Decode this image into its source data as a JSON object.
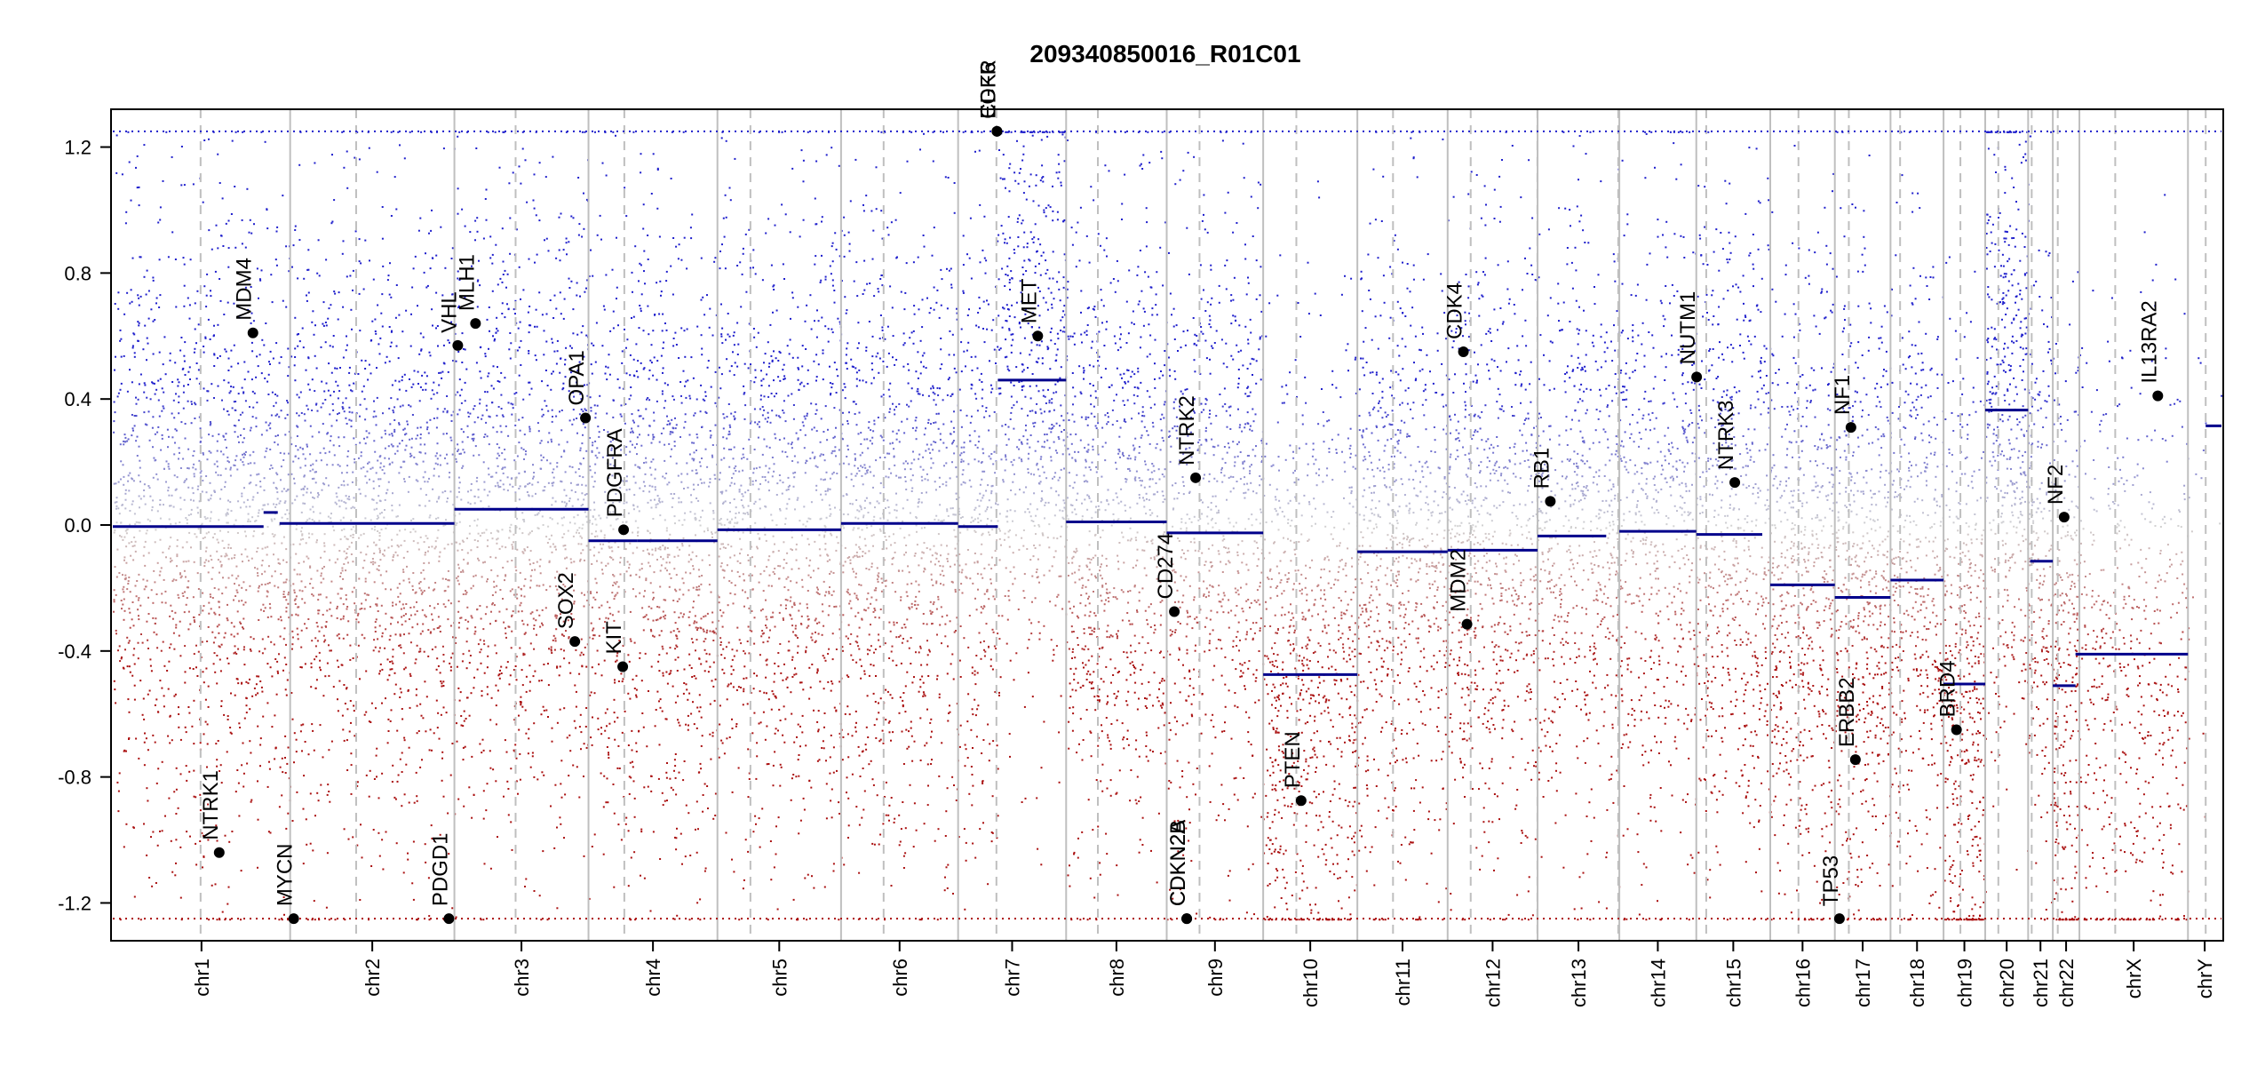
{
  "chart_data": {
    "type": "scatter",
    "title": "209340850016_R01C01",
    "ylim": [
      -1.32,
      1.32
    ],
    "y_ticks": [
      -1.2,
      -0.8,
      -0.4,
      0.0,
      0.4,
      0.8,
      1.2
    ],
    "y_tick_labels": [
      "-1.2",
      "-0.8",
      "-0.4",
      "0.0",
      "0.4",
      "0.8",
      "1.2"
    ],
    "cap": 1.25,
    "colors": {
      "gain": "#1f1fcc",
      "loss": "#aa1010",
      "neutral": "#bdbdbd",
      "segment": "#00008b",
      "boundary": "#bfbfbf"
    },
    "chromosomes": [
      {
        "name": "chr1",
        "start": 0,
        "end": 1000,
        "centromere": 495,
        "density": 1.0
      },
      {
        "name": "chr2",
        "start": 1000,
        "end": 1926,
        "centromere": 1372,
        "density": 1.0
      },
      {
        "name": "chr3",
        "start": 1926,
        "end": 2682,
        "centromere": 2271,
        "density": 1.0
      },
      {
        "name": "chr4",
        "start": 2682,
        "end": 3409,
        "centromere": 2884,
        "density": 1.0
      },
      {
        "name": "chr5",
        "start": 3409,
        "end": 4106,
        "centromere": 3595,
        "density": 1.0
      },
      {
        "name": "chr6",
        "start": 4106,
        "end": 4766,
        "centromere": 4346,
        "density": 1.0
      },
      {
        "name": "chr7",
        "start": 4766,
        "end": 5375,
        "centromere": 4982,
        "density": 1.0
      },
      {
        "name": "chr8",
        "start": 5375,
        "end": 5942,
        "centromere": 5554,
        "density": 1.0
      },
      {
        "name": "chr9",
        "start": 5942,
        "end": 6486,
        "centromere": 6127,
        "density": 0.9
      },
      {
        "name": "chr10",
        "start": 6486,
        "end": 7017,
        "centromere": 6673,
        "density": 1.0
      },
      {
        "name": "chr11",
        "start": 7017,
        "end": 7526,
        "centromere": 7218,
        "density": 1.0
      },
      {
        "name": "chr12",
        "start": 7526,
        "end": 8033,
        "centromere": 7656,
        "density": 1.0
      },
      {
        "name": "chr13",
        "start": 8033,
        "end": 8494,
        "centromere": 8032,
        "density": 0.9
      },
      {
        "name": "chr14",
        "start": 8494,
        "end": 8928,
        "centromere": 8488,
        "density": 0.9
      },
      {
        "name": "chr15",
        "start": 8928,
        "end": 9345,
        "centromere": 8984,
        "density": 1.0
      },
      {
        "name": "chr16",
        "start": 9345,
        "end": 9709,
        "centromere": 9504,
        "density": 1.1
      },
      {
        "name": "chr17",
        "start": 9709,
        "end": 10023,
        "centromere": 9788,
        "density": 1.2
      },
      {
        "name": "chr18",
        "start": 10023,
        "end": 10322,
        "centromere": 10077,
        "density": 1.0
      },
      {
        "name": "chr19",
        "start": 10322,
        "end": 10557,
        "centromere": 10417,
        "density": 1.3
      },
      {
        "name": "chr20",
        "start": 10557,
        "end": 10799,
        "centromere": 10631,
        "density": 1.3
      },
      {
        "name": "chr21",
        "start": 10799,
        "end": 10938,
        "centromere": 10819,
        "density": 1.0
      },
      {
        "name": "chr22",
        "start": 10938,
        "end": 11088,
        "centromere": 10966,
        "density": 1.2
      },
      {
        "name": "chrX",
        "start": 11088,
        "end": 11700,
        "centromere": 11290,
        "density": 0.6
      },
      {
        "name": "chrY",
        "start": 11700,
        "end": 11889,
        "centromere": 11800,
        "density": 0.05
      }
    ],
    "segments": [
      {
        "x0": 0,
        "x1": 850,
        "y": -0.005
      },
      {
        "x0": 850,
        "x1": 930,
        "y": 0.04
      },
      {
        "x0": 940,
        "x1": 1926,
        "y": 0.005
      },
      {
        "x0": 1926,
        "x1": 2682,
        "y": 0.05
      },
      {
        "x0": 2682,
        "x1": 2958,
        "y": -0.05
      },
      {
        "x0": 2958,
        "x1": 3409,
        "y": -0.05
      },
      {
        "x0": 3409,
        "x1": 4106,
        "y": -0.015
      },
      {
        "x0": 4106,
        "x1": 4766,
        "y": 0.005
      },
      {
        "x0": 4766,
        "x1": 4990,
        "y": -0.005
      },
      {
        "x0": 4990,
        "x1": 5375,
        "y": 0.46
      },
      {
        "x0": 5375,
        "x1": 5942,
        "y": 0.01
      },
      {
        "x0": 5942,
        "x1": 6486,
        "y": -0.025
      },
      {
        "x0": 6486,
        "x1": 7017,
        "y": -0.475
      },
      {
        "x0": 7017,
        "x1": 7526,
        "y": -0.085
      },
      {
        "x0": 7526,
        "x1": 8033,
        "y": -0.08
      },
      {
        "x0": 8033,
        "x1": 8420,
        "y": -0.035
      },
      {
        "x0": 8494,
        "x1": 8928,
        "y": -0.02
      },
      {
        "x0": 8928,
        "x1": 9300,
        "y": -0.03
      },
      {
        "x0": 9345,
        "x1": 9709,
        "y": -0.19
      },
      {
        "x0": 9709,
        "x1": 10023,
        "y": -0.23
      },
      {
        "x0": 10023,
        "x1": 10322,
        "y": -0.175
      },
      {
        "x0": 10322,
        "x1": 10557,
        "y": -0.505
      },
      {
        "x0": 10557,
        "x1": 10799,
        "y": 0.365
      },
      {
        "x0": 10810,
        "x1": 10938,
        "y": -0.115
      },
      {
        "x0": 10938,
        "x1": 11066,
        "y": -0.51
      },
      {
        "x0": 11066,
        "x1": 11700,
        "y": -0.41
      },
      {
        "x0": 11800,
        "x1": 11889,
        "y": 0.315
      }
    ],
    "genes": [
      {
        "name": "NTRK1",
        "x": 600,
        "y": -1.04
      },
      {
        "name": "MDM4",
        "x": 790,
        "y": 0.61
      },
      {
        "name": "MYCN",
        "x": 1020,
        "y": -1.25
      },
      {
        "name": "PDGD1",
        "x": 1895,
        "y": -1.25
      },
      {
        "name": "VHL",
        "x": 1945,
        "y": 0.57
      },
      {
        "name": "MLH1",
        "x": 2045,
        "y": 0.64
      },
      {
        "name": "SOX2",
        "x": 2605,
        "y": -0.37
      },
      {
        "name": "OPA1",
        "x": 2665,
        "y": 0.34
      },
      {
        "name": "KIT",
        "x": 2875,
        "y": -0.45
      },
      {
        "name": "PDGFRA",
        "x": 2880,
        "y": -0.015
      },
      {
        "name": "EGFR",
        "x": 4985,
        "y": 1.25
      },
      {
        "name": "CDK6",
        "x": 4985,
        "y": 1.25
      },
      {
        "name": "MET",
        "x": 5215,
        "y": 0.6
      },
      {
        "name": "CD274",
        "x": 5985,
        "y": -0.275
      },
      {
        "name": "CDKN2A",
        "x": 6055,
        "y": -1.25
      },
      {
        "name": "CDKN2B",
        "x": 6055,
        "y": -1.25
      },
      {
        "name": "NTRK2",
        "x": 6105,
        "y": 0.15
      },
      {
        "name": "PTEN",
        "x": 6700,
        "y": -0.875
      },
      {
        "name": "CDK4",
        "x": 7615,
        "y": 0.55
      },
      {
        "name": "MDM2",
        "x": 7635,
        "y": -0.315
      },
      {
        "name": "RB1",
        "x": 8105,
        "y": 0.075
      },
      {
        "name": "NUTM1",
        "x": 8930,
        "y": 0.47
      },
      {
        "name": "NTRK3",
        "x": 9145,
        "y": 0.135
      },
      {
        "name": "TP53",
        "x": 9735,
        "y": -1.25
      },
      {
        "name": "ERBB2",
        "x": 9825,
        "y": -0.745
      },
      {
        "name": "NF1",
        "x": 9800,
        "y": 0.31
      },
      {
        "name": "BRD4",
        "x": 10395,
        "y": -0.65
      },
      {
        "name": "NF2",
        "x": 11002,
        "y": 0.025
      },
      {
        "name": "IL13RA2",
        "x": 11530,
        "y": 0.41
      }
    ]
  }
}
